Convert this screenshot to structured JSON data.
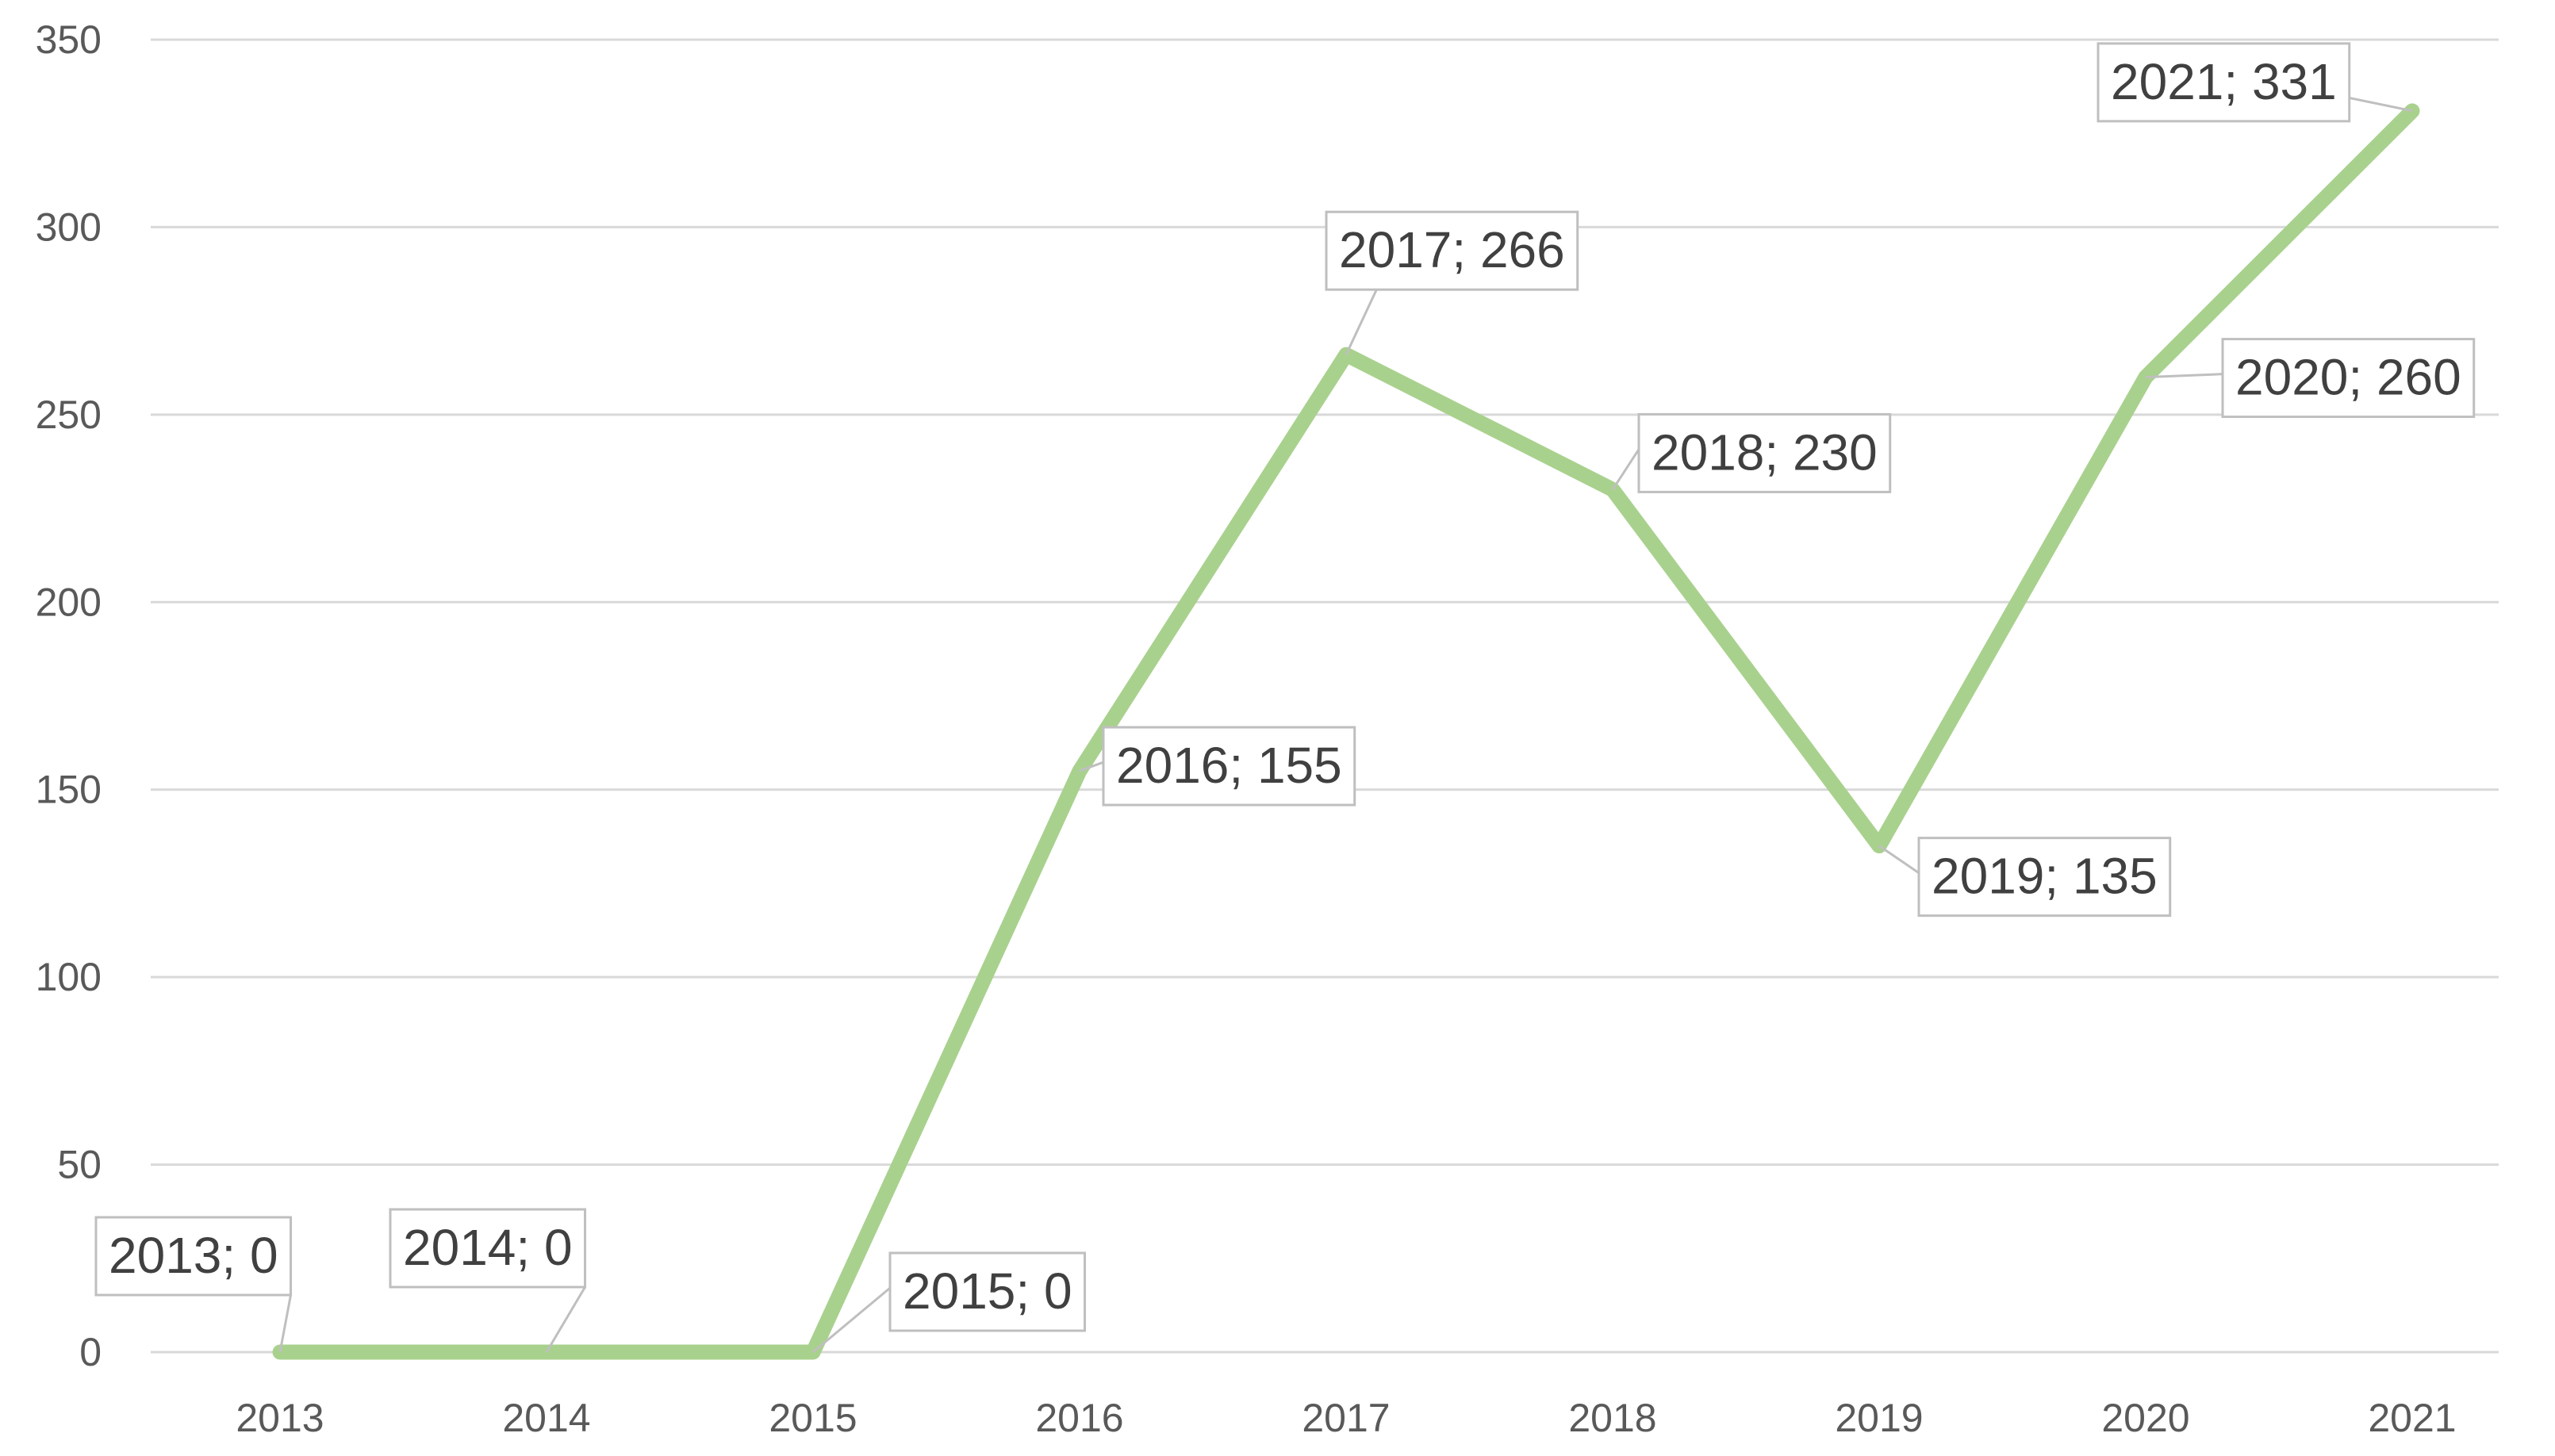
{
  "chart_data": {
    "type": "line",
    "title": "",
    "xlabel": "",
    "ylabel": "",
    "categories": [
      "2013",
      "2014",
      "2015",
      "2016",
      "2017",
      "2018",
      "2019",
      "2020",
      "2021"
    ],
    "series": [
      {
        "values": [
          0,
          0,
          0,
          155,
          266,
          230,
          135,
          260,
          331
        ]
      }
    ],
    "data_labels": [
      "2013; 0",
      "2014; 0",
      "2015; 0",
      "2016; 155",
      "2017; 266",
      "2018; 230",
      "2019; 135",
      "2020; 260",
      "2021; 331"
    ],
    "ylim": [
      0,
      350
    ],
    "yticks": [
      "0",
      "50",
      "100",
      "150",
      "200",
      "250",
      "300",
      "350"
    ],
    "grid": true,
    "legend": "none",
    "colors": {
      "line": "#a9d18e",
      "grid": "#d9d9d9",
      "label_border": "#bfbfbf"
    }
  }
}
